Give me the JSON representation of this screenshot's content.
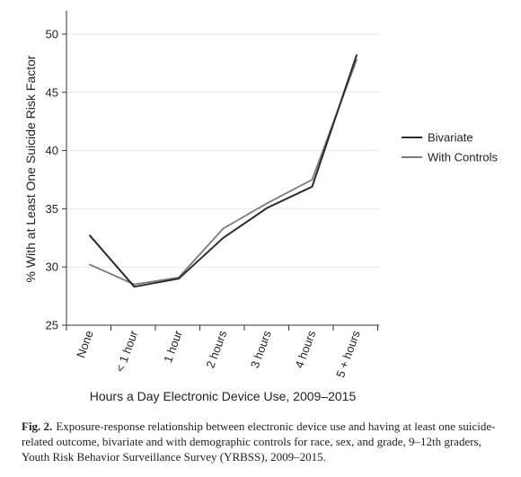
{
  "chart_data": {
    "type": "line",
    "categories": [
      "None",
      "< 1 hour",
      "1 hour",
      "2 hours",
      "3 hours",
      "4 hours",
      "5 + hours"
    ],
    "series": [
      {
        "name": "Bivariate",
        "color": "#2b2b2b",
        "values": [
          32.7,
          28.3,
          29.0,
          32.5,
          35.1,
          36.9,
          48.2
        ]
      },
      {
        "name": "With Controls",
        "color": "#7a7a7a",
        "values": [
          30.2,
          28.5,
          29.1,
          33.3,
          35.5,
          37.5,
          47.8
        ]
      }
    ],
    "title": "",
    "xlabel": "Hours a Day Electronic Device Use, 2009–2015",
    "ylabel": "% With at Least One Suicide Risk Factor",
    "ylim": [
      25,
      50
    ],
    "yticks": [
      25,
      30,
      35,
      40,
      45,
      50
    ],
    "grid": true,
    "legend_position": "right"
  },
  "caption": {
    "label": "Fig. 2.",
    "text": "Exposure-response relationship between electronic device use and having at least one suicide-related outcome, bivariate and with demographic controls for race, sex, and grade, 9–12th graders, Youth Risk Behavior Surveillance Survey (YRBSS), 2009–2015."
  }
}
